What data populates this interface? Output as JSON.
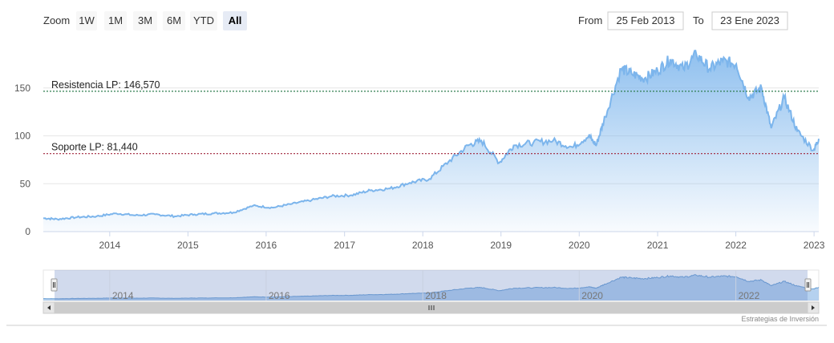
{
  "toolbar": {
    "zoom_label": "Zoom",
    "buttons": [
      "1W",
      "1M",
      "3M",
      "6M",
      "YTD",
      "All"
    ],
    "active_button": "All",
    "from_label": "From",
    "from_value": "25 Feb 2013",
    "to_label": "To",
    "to_value": "23 Ene 2023"
  },
  "credit": "Estrategias de Inversión",
  "colors": {
    "line": "#7cb5ec",
    "fill_top": "#7cb5ec",
    "resistance": "#2e7d4f",
    "support": "#a0243a",
    "grid": "#e6e6e6",
    "navigator_mask": "rgba(102,133,194,0.3)"
  },
  "chart_data": {
    "type": "area",
    "title": "",
    "xlabel": "",
    "ylabel": "",
    "xlim": [
      "2013-02-25",
      "2023-01-23"
    ],
    "ylim": [
      0,
      200
    ],
    "y_ticks": [
      0,
      50,
      100,
      150
    ],
    "x_ticks": [
      "2014",
      "2015",
      "2016",
      "2017",
      "2018",
      "2019",
      "2020",
      "2021",
      "2022",
      "2023"
    ],
    "navigator_ticks": [
      "2014",
      "2016",
      "2018",
      "2020",
      "2022"
    ],
    "grid": true,
    "legend": "none",
    "plot_lines": [
      {
        "label": "Resistencia LP: 146,570",
        "value": 146.57,
        "role": "resistance"
      },
      {
        "label": "Soporte LP: 81,440",
        "value": 81.44,
        "role": "support"
      }
    ],
    "series": [
      {
        "x": [
          "2013-02-25",
          "2013-05-01",
          "2013-08-01",
          "2013-11-01",
          "2014-02-01",
          "2014-05-01",
          "2014-08-01",
          "2014-11-01",
          "2015-02-01",
          "2015-05-01",
          "2015-08-01",
          "2015-11-01",
          "2016-02-01",
          "2016-05-01",
          "2016-08-01",
          "2016-11-01",
          "2017-02-01",
          "2017-05-01",
          "2017-08-01",
          "2017-11-01",
          "2018-02-01",
          "2018-05-01",
          "2018-08-01",
          "2018-10-01",
          "2018-12-24",
          "2019-03-01",
          "2019-06-01",
          "2019-09-01",
          "2019-12-01",
          "2020-02-15",
          "2020-03-20",
          "2020-05-01",
          "2020-07-15",
          "2020-09-01",
          "2020-11-01",
          "2021-01-01",
          "2021-03-01",
          "2021-05-01",
          "2021-07-01",
          "2021-09-01",
          "2021-11-01",
          "2022-01-03",
          "2022-03-01",
          "2022-05-01",
          "2022-06-15",
          "2022-08-15",
          "2022-10-15",
          "2022-12-30",
          "2023-01-23"
        ],
        "values": [
          14,
          13,
          15,
          16,
          19,
          17,
          18,
          16,
          18,
          19,
          20,
          27,
          25,
          29,
          33,
          37,
          38,
          43,
          45,
          51,
          55,
          73,
          90,
          95,
          72,
          90,
          93,
          95,
          88,
          100,
          90,
          120,
          170,
          165,
          160,
          168,
          180,
          170,
          185,
          170,
          178,
          175,
          140,
          150,
          108,
          140,
          105,
          85,
          97
        ]
      }
    ]
  }
}
